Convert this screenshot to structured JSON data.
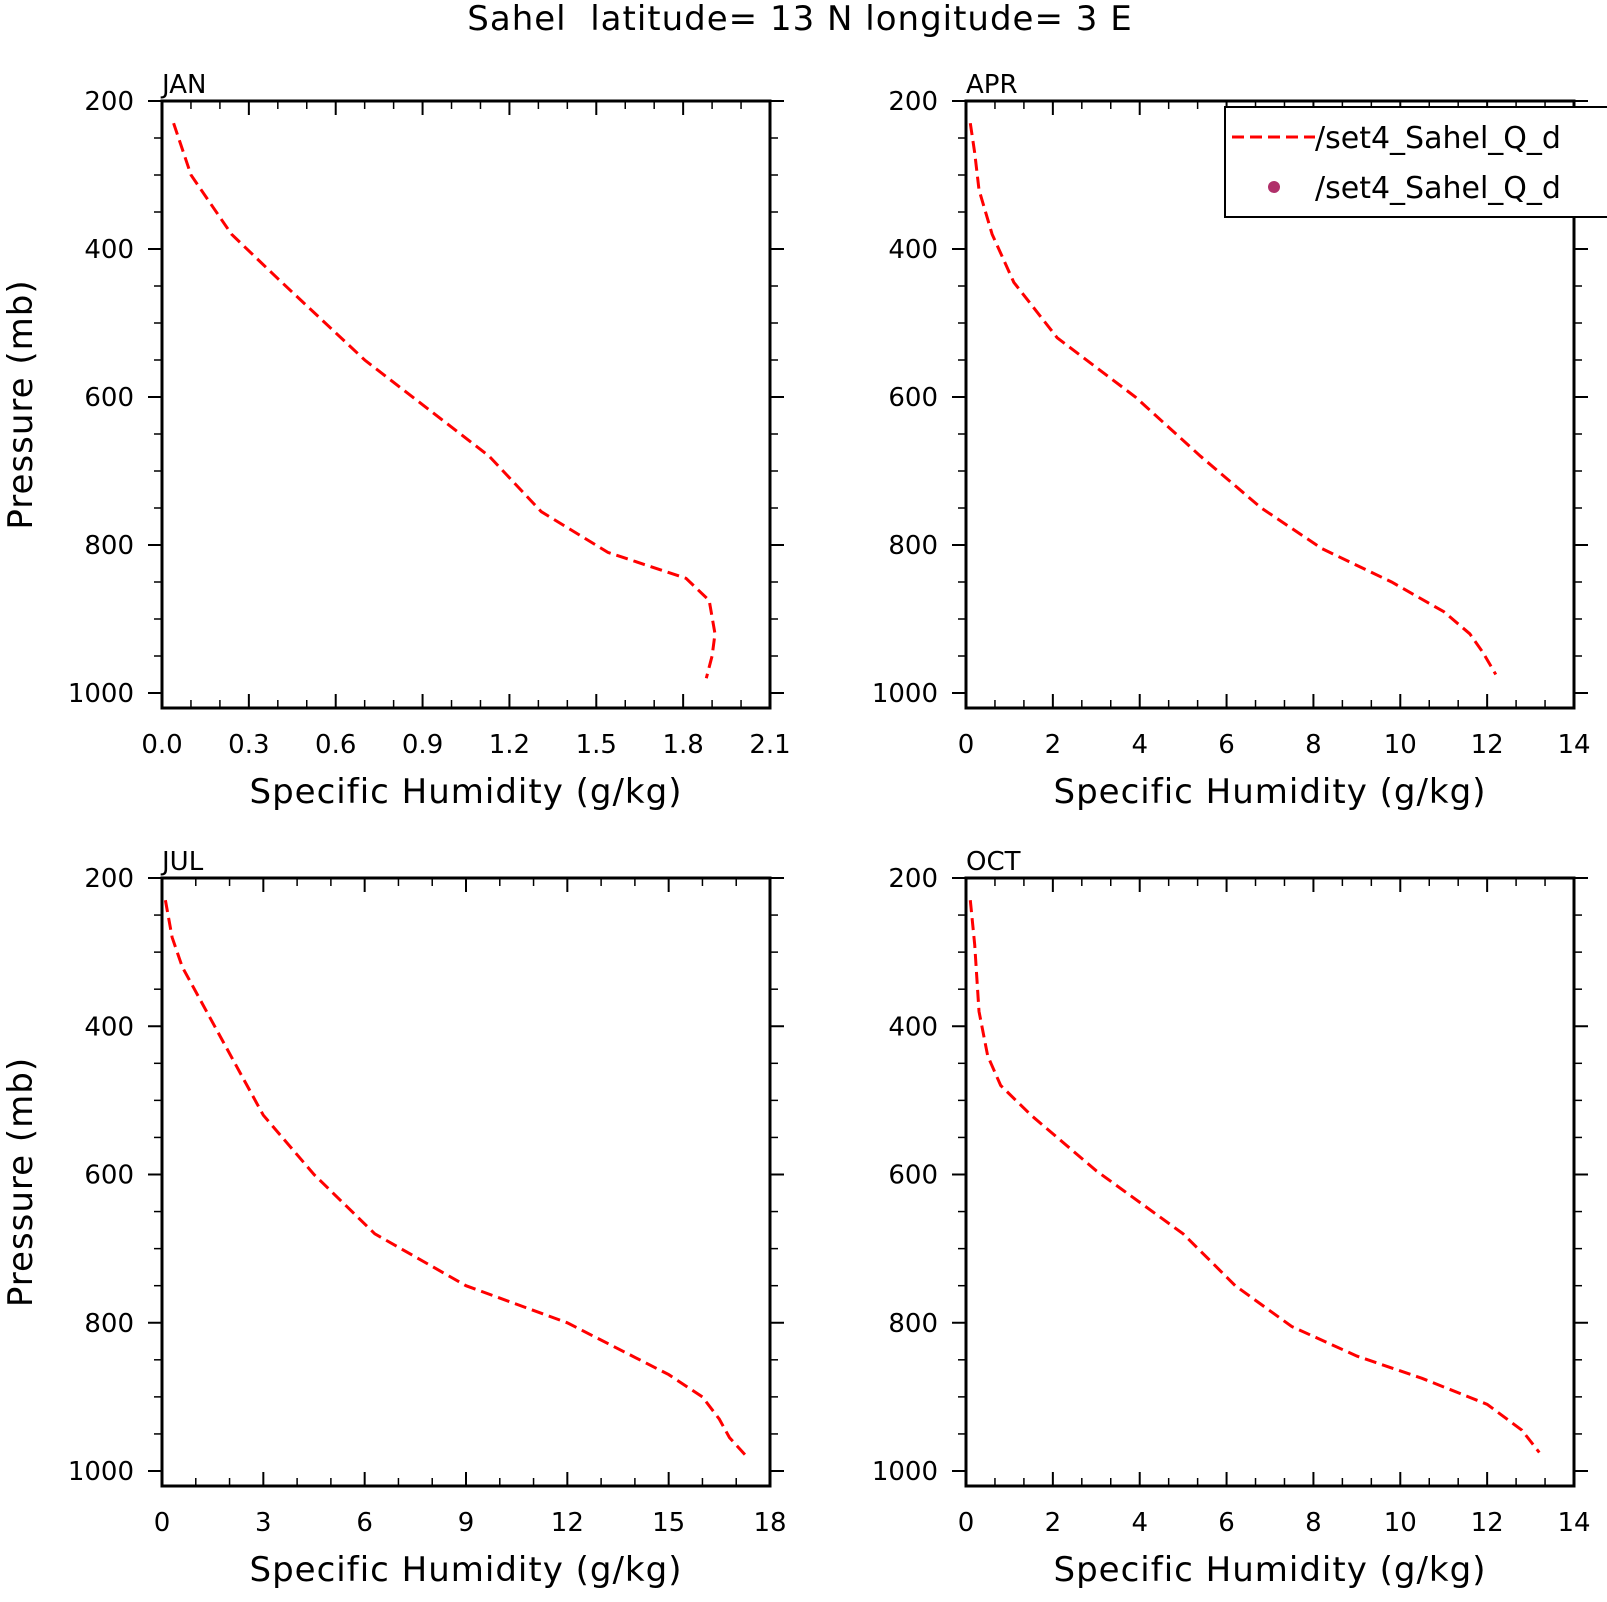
{
  "figure": {
    "title": "Sahel  latitude= 13 N longitude= 3 E"
  },
  "legend": {
    "entries": [
      {
        "label": "/set4_Sahel_Q_d",
        "style": "dashed-line",
        "color": "#ff0000"
      },
      {
        "label": "/set4_Sahel_Q_d",
        "style": "dot",
        "color": "#b0306a"
      }
    ]
  },
  "colors": {
    "line": "#ff0000",
    "marker": "#b0306a",
    "axes": "#000000"
  },
  "chart_data": [
    {
      "type": "line",
      "panel": "JAN",
      "xlabel": "Specific Humidity (g/kg)",
      "ylabel": "Pressure (mb)",
      "xlim": [
        0.0,
        2.1
      ],
      "ylim": [
        1000,
        200
      ],
      "xticks": [
        "0.0",
        "0.3",
        "0.6",
        "0.9",
        "1.2",
        "1.5",
        "1.8",
        "2.1"
      ],
      "yticks": [
        "200",
        "400",
        "600",
        "800",
        "1000"
      ],
      "series": [
        {
          "x": [
            0.04,
            0.1,
            0.24,
            0.4,
            0.7,
            1.13,
            1.31,
            1.54,
            1.81,
            1.89,
            1.91,
            1.9,
            1.88
          ],
          "y": [
            230,
            300,
            380,
            440,
            550,
            680,
            755,
            810,
            845,
            875,
            920,
            950,
            980
          ]
        }
      ]
    },
    {
      "type": "line",
      "panel": "APR",
      "xlabel": "Specific Humidity (g/kg)",
      "ylabel": "",
      "xlim": [
        0,
        14
      ],
      "ylim": [
        1000,
        200
      ],
      "xticks": [
        "0",
        "2",
        "4",
        "6",
        "8",
        "10",
        "12",
        "14"
      ],
      "yticks": [
        "200",
        "400",
        "600",
        "800",
        "1000"
      ],
      "series": [
        {
          "x": [
            0.1,
            0.2,
            0.3,
            0.6,
            1.1,
            2.1,
            3.9,
            5.4,
            6.8,
            8.2,
            9.8,
            11.0,
            11.6,
            11.9,
            12.2
          ],
          "y": [
            230,
            270,
            320,
            380,
            445,
            520,
            600,
            680,
            750,
            805,
            850,
            890,
            920,
            945,
            975
          ]
        }
      ]
    },
    {
      "type": "line",
      "panel": "JUL",
      "xlabel": "Specific Humidity (g/kg)",
      "ylabel": "Pressure (mb)",
      "xlim": [
        0,
        18
      ],
      "ylim": [
        1000,
        200
      ],
      "xticks": [
        "0",
        "3",
        "6",
        "9",
        "12",
        "15",
        "18"
      ],
      "yticks": [
        "200",
        "400",
        "600",
        "800",
        "1000"
      ],
      "series": [
        {
          "x": [
            0.1,
            0.3,
            0.6,
            1.2,
            3.0,
            4.5,
            6.3,
            9.0,
            12.0,
            15.0,
            16.0,
            16.5,
            16.8,
            17.3
          ],
          "y": [
            230,
            280,
            320,
            370,
            520,
            600,
            680,
            750,
            800,
            870,
            900,
            930,
            955,
            980
          ]
        }
      ]
    },
    {
      "type": "line",
      "panel": "OCT",
      "xlabel": "Specific Humidity (g/kg)",
      "ylabel": "",
      "xlim": [
        0,
        14
      ],
      "ylim": [
        1000,
        200
      ],
      "xticks": [
        "0",
        "2",
        "4",
        "6",
        "8",
        "10",
        "12",
        "14"
      ],
      "yticks": [
        "200",
        "400",
        "600",
        "800",
        "1000"
      ],
      "series": [
        {
          "x": [
            0.1,
            0.2,
            0.3,
            0.5,
            0.8,
            1.5,
            3.0,
            5.0,
            6.2,
            7.5,
            9.0,
            10.5,
            12.0,
            12.8,
            13.2
          ],
          "y": [
            230,
            290,
            380,
            440,
            480,
            520,
            595,
            680,
            750,
            805,
            845,
            875,
            910,
            945,
            975
          ]
        }
      ]
    }
  ]
}
